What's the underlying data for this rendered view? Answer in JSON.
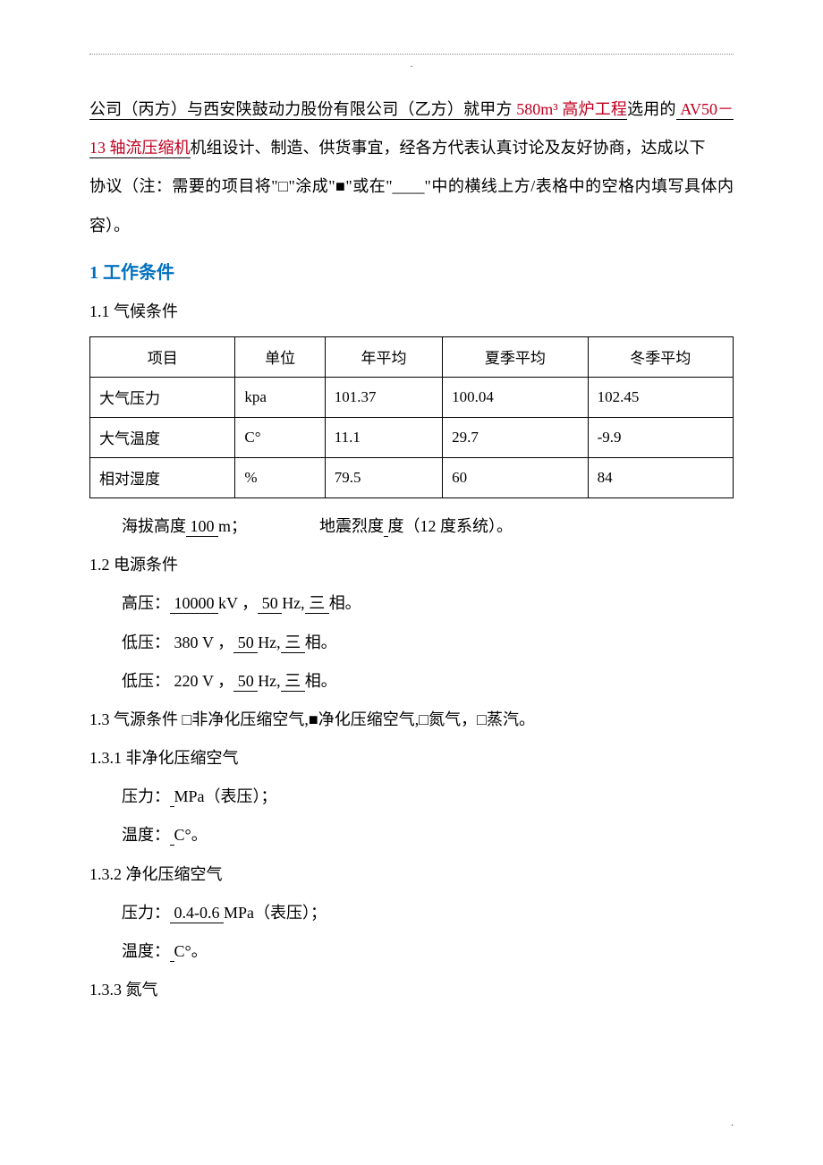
{
  "header": {
    "dot": "."
  },
  "intro": {
    "party_c_prefix": "公司（丙方）与西安陕鼓动力股份有限公司（乙方）就甲方",
    "project_red": " 580m³ 高炉工程",
    "selected_txt": "选用的",
    "model_red": " AV50－13 轴流压缩机",
    "tail1": "机组设计、制造、供货事宜，经各方代表认真讨论及友好协商，达成以下",
    "tail2": "协议（注：需要的项目将\"□\"涂成\"■\"或在\"____\"中的横线上方/表格中的空格内填写具体内容）。"
  },
  "section1": {
    "title": "1 工作条件",
    "sub1_1": "1.1  气候条件",
    "table": {
      "columns": [
        "项目",
        "单位",
        "年平均",
        "夏季平均",
        "冬季平均"
      ],
      "rows": [
        [
          "大气压力",
          "kpa",
          "101.37",
          "100.04",
          "102.45"
        ],
        [
          "大气温度",
          "C°",
          "11.1",
          "29.7",
          "-9.9"
        ],
        [
          "相对湿度",
          "%",
          "79.5",
          "60",
          "84"
        ]
      ],
      "col_align": [
        "left",
        "center",
        "left",
        "left",
        "left"
      ]
    },
    "altitude_label": "海拔高度",
    "altitude_value": " 100           ",
    "altitude_unit": "m；",
    "seismic_label": "地震烈度",
    "seismic_value": "          ",
    "seismic_unit": "度（12 度系统）。",
    "sub1_2": "1.2  电源条件",
    "power": {
      "hv": {
        "label": "高压：",
        "v": " 10000 ",
        "v_unit": " kV ，",
        "hz": "   50   ",
        "hz_unit": "Hz,",
        "ph": "  三  ",
        "ph_unit": "相。"
      },
      "lv1": {
        "label": "低压：",
        "v": "   380   ",
        "v_unit": "V  ，",
        "hz": "   50   ",
        "hz_unit": "Hz,",
        "ph": "  三  ",
        "ph_unit": "相。"
      },
      "lv2": {
        "label": "低压：",
        "v": "   220   ",
        "v_unit": "V  ，",
        "hz": "   50   ",
        "hz_unit": "Hz,",
        "ph": "  三  ",
        "ph_unit": "相。"
      }
    },
    "sub1_3": "1.3  气源条件    □非净化压缩空气,■净化压缩空气,□氮气，□蒸汽。",
    "sub1_3_1": "1.3.1 非净化压缩空气",
    "nonpure": {
      "p_label": "压力：",
      "p_val": "           ",
      "p_unit": "MPa（表压）；",
      "t_label": "温度：",
      "t_val": "           ",
      "t_unit": "C°。"
    },
    "sub1_3_2": "1.3.2 净化压缩空气",
    "pure": {
      "p_label": "压力：",
      "p_val": " 0.4-0.6  ",
      "p_unit": "MPa（表压）；",
      "t_label": "温度：",
      "t_val": "           ",
      "t_unit": "C°。"
    },
    "sub1_3_3": "1.3.3 氮气"
  },
  "footer": {
    "dot": "."
  }
}
